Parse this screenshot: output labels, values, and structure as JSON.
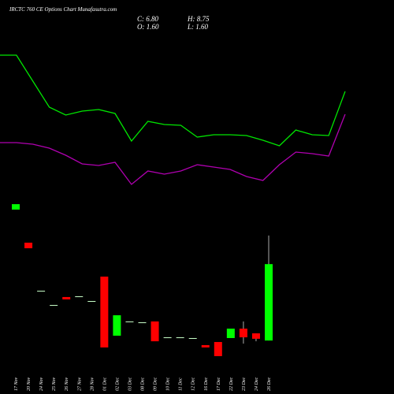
{
  "chart_data": [
    {
      "type": "candlestick",
      "title": "IRCTC 760 CE Options Chart Munafasutra.com",
      "ohlc_labels": [
        "C: 6.80",
        "H: 8.75",
        "O: 1.60",
        "L: 1.60"
      ],
      "categories": [
        "17 Nov",
        "20 Nov",
        "24 Nov",
        "25 Nov",
        "26 Nov",
        "27 Nov",
        "28 Nov",
        "01 Dec",
        "02 Dec",
        "03 Dec",
        "08 Dec",
        "09 Dec",
        "10 Dec",
        "11 Dec",
        "12 Dec",
        "16 Dec",
        "17 Dec",
        "22 Dec",
        "23 Dec",
        "24 Dec",
        "26 Dec"
      ],
      "open": [
        10.51,
        8.26,
        4.99,
        4.02,
        4.56,
        4.61,
        4.29,
        5.95,
        1.93,
        2.9,
        2.84,
        2.9,
        1.82,
        1.82,
        1.77,
        1.29,
        1.5,
        1.77,
        2.41,
        2.09,
        1.6
      ],
      "high": [
        10.88,
        8.26,
        4.99,
        4.02,
        4.56,
        4.61,
        4.29,
        5.95,
        3.32,
        2.9,
        2.84,
        2.9,
        1.82,
        1.82,
        1.77,
        1.29,
        1.5,
        2.41,
        2.9,
        2.09,
        8.75
      ],
      "low": [
        10.51,
        7.88,
        4.99,
        4.02,
        4.4,
        4.61,
        4.29,
        1.13,
        1.93,
        2.9,
        2.84,
        1.55,
        1.82,
        1.82,
        1.77,
        1.13,
        0.54,
        1.77,
        1.39,
        1.55,
        1.6
      ],
      "close": [
        10.88,
        7.88,
        4.99,
        4.02,
        4.4,
        4.61,
        4.29,
        1.13,
        3.32,
        2.9,
        2.84,
        1.55,
        1.82,
        1.82,
        1.77,
        1.13,
        0.54,
        2.41,
        1.82,
        1.72,
        6.8
      ],
      "up_color": "#00ff00",
      "down_color": "#ff0000",
      "flat_color": "#c8ffc8",
      "ylim": [
        0,
        12
      ]
    },
    {
      "type": "line",
      "x": [
        0,
        1,
        2,
        3,
        4,
        5,
        6,
        7,
        8,
        9,
        10,
        11,
        12,
        13,
        14,
        15,
        16,
        17,
        18,
        19,
        20,
        21
      ],
      "xlim": [
        0,
        21
      ],
      "ylim": [
        0,
        200
      ],
      "series": [
        {
          "color": "#00e600",
          "values": [
            190,
            190,
            157,
            124,
            114,
            119,
            121,
            116,
            81,
            106,
            102,
            101,
            86,
            89,
            89,
            88,
            82,
            75,
            95,
            89,
            88,
            144
          ]
        },
        {
          "color": "#b000b0",
          "values": [
            79,
            79,
            77,
            72,
            63,
            52,
            50,
            54,
            26,
            43,
            39,
            43,
            51,
            48,
            45,
            36,
            31,
            51,
            67,
            65,
            62,
            115
          ]
        }
      ]
    }
  ]
}
